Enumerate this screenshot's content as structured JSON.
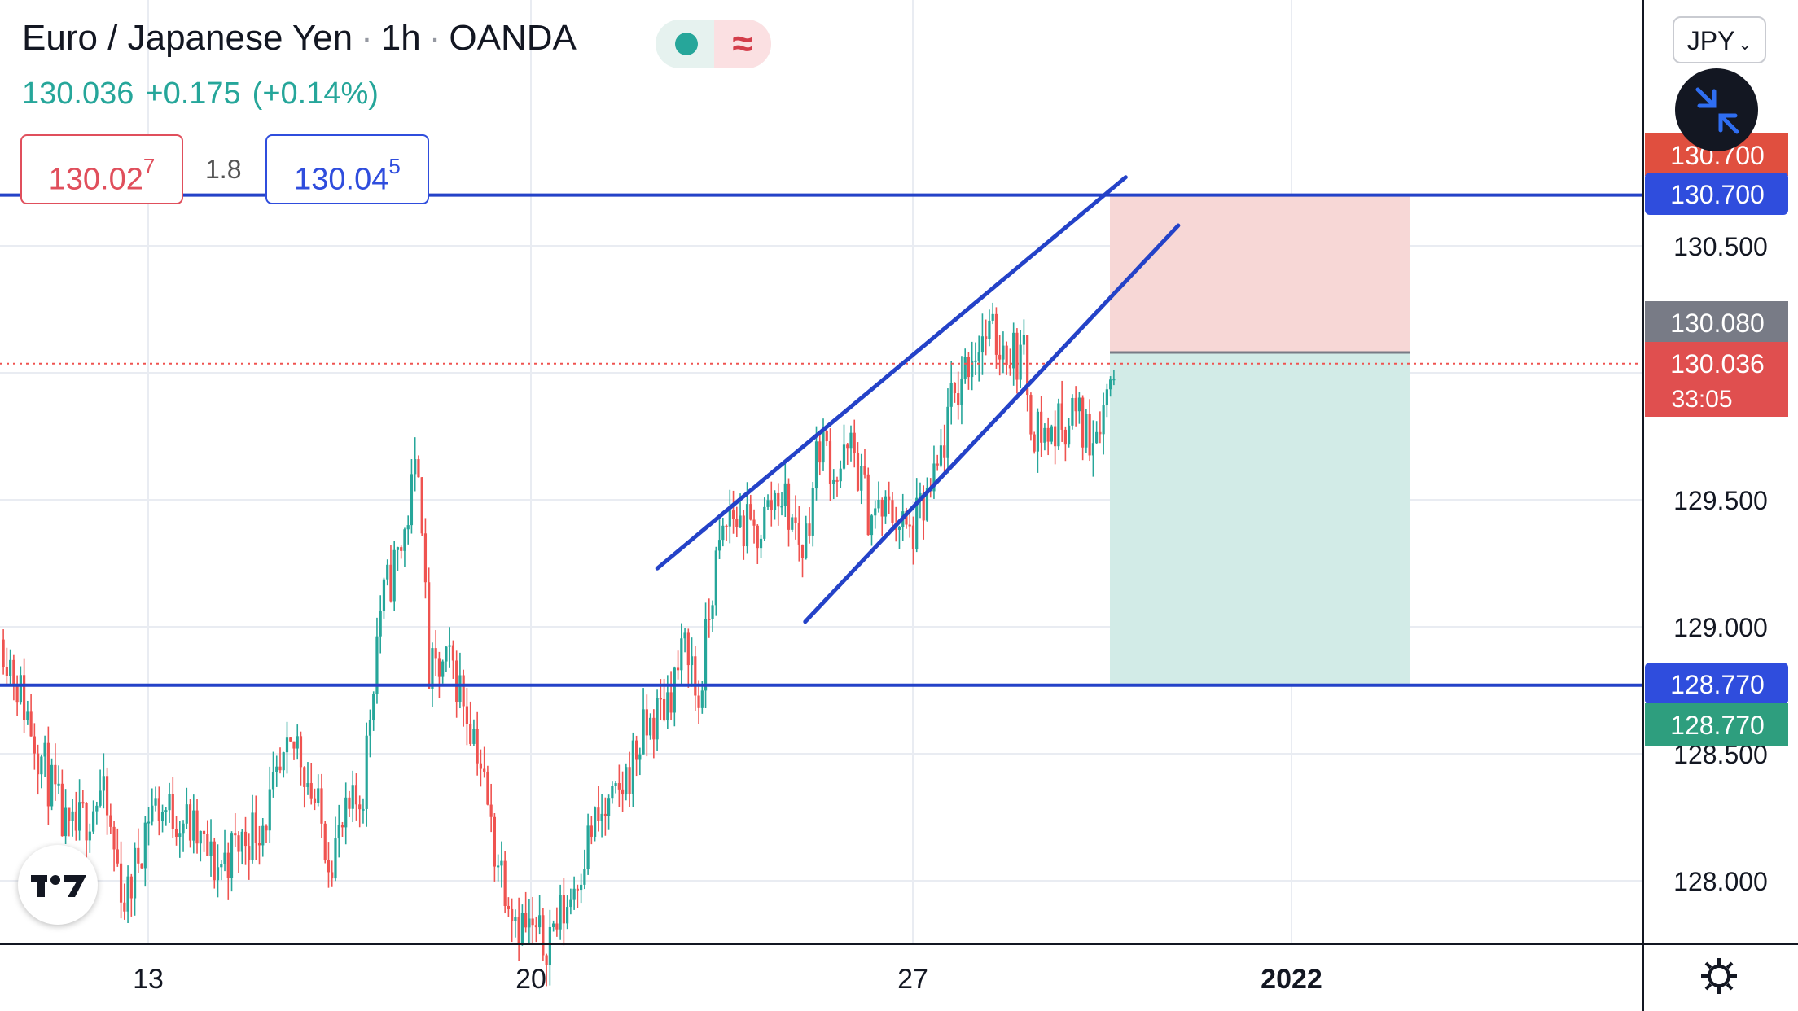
{
  "header": {
    "symbol": "Euro / Japanese Yen",
    "interval": "1h",
    "exchange": "OANDA",
    "separator": "·",
    "wave_glyph": "≈",
    "last": "130.036",
    "change": "+0.175",
    "change_pct": "(+0.14%)"
  },
  "bid": {
    "main": "130.02",
    "sup": "7"
  },
  "ask": {
    "main": "130.04",
    "sup": "5"
  },
  "spread": "1.8",
  "currency_button": {
    "label": "JPY",
    "chevron": "⌄"
  },
  "icons": {
    "status": "market-open-dot-icon",
    "wave": "wave-icon",
    "compress": "compress-arrows-icon",
    "logo": "tradingview-logo-icon",
    "settings": "gear-icon"
  },
  "colors": {
    "up": "#26a69a",
    "down": "#ef5350",
    "line": "#2442c8",
    "stop_zone": "#f7d7d6",
    "target_zone": "#d2ebe7"
  },
  "chart_data": {
    "type": "candlestick",
    "symbol": "EURJPY",
    "interval": "1h",
    "x_ticks": [
      "13",
      "20",
      "27",
      "2022"
    ],
    "y_ticks": [
      "128.000",
      "128.500",
      "129.000",
      "129.500",
      "130.000",
      "130.500"
    ],
    "ylim": [
      127.75,
      131.6
    ],
    "y_scale": "linear",
    "grid": true,
    "price_axis_labels": [
      {
        "value": "130.700",
        "kind": "stop-zone"
      },
      {
        "value": "130.700",
        "kind": "horizontal-line"
      },
      {
        "value": "130.080",
        "kind": "entry"
      },
      {
        "value": "130.036",
        "kind": "last-price",
        "countdown": "33:05"
      },
      {
        "value": "128.770",
        "kind": "horizontal-line"
      },
      {
        "value": "128.770",
        "kind": "target-zone"
      }
    ],
    "horizontal_lines": [
      130.7,
      128.77
    ],
    "last_price": 130.036,
    "countdown": "33:05",
    "short_position": {
      "entry": 130.08,
      "stop": 130.7,
      "target": 128.77
    },
    "channel_lines": [
      {
        "from": [
          0.4,
          129.23
        ],
        "to": [
          0.685,
          130.77
        ]
      },
      {
        "from": [
          0.49,
          129.02
        ],
        "to": [
          0.717,
          130.58
        ]
      }
    ],
    "candles_anchor_closes": [
      [
        0.0,
        128.95
      ],
      [
        0.02,
        128.55
      ],
      [
        0.04,
        128.15
      ],
      [
        0.06,
        128.35
      ],
      [
        0.075,
        127.9
      ],
      [
        0.09,
        128.3
      ],
      [
        0.11,
        128.25
      ],
      [
        0.13,
        128.05
      ],
      [
        0.16,
        128.25
      ],
      [
        0.18,
        128.55
      ],
      [
        0.2,
        128.1
      ],
      [
        0.22,
        128.35
      ],
      [
        0.23,
        129.05
      ],
      [
        0.245,
        129.35
      ],
      [
        0.255,
        129.7
      ],
      [
        0.26,
        128.8
      ],
      [
        0.275,
        128.85
      ],
      [
        0.29,
        128.55
      ],
      [
        0.3,
        128.15
      ],
      [
        0.315,
        127.85
      ],
      [
        0.33,
        127.75
      ],
      [
        0.345,
        127.9
      ],
      [
        0.36,
        128.2
      ],
      [
        0.375,
        128.3
      ],
      [
        0.39,
        128.55
      ],
      [
        0.405,
        128.7
      ],
      [
        0.42,
        128.95
      ],
      [
        0.425,
        128.65
      ],
      [
        0.435,
        129.2
      ],
      [
        0.445,
        129.45
      ],
      [
        0.46,
        129.35
      ],
      [
        0.475,
        129.55
      ],
      [
        0.49,
        129.3
      ],
      [
        0.5,
        129.75
      ],
      [
        0.51,
        129.6
      ],
      [
        0.52,
        129.7
      ],
      [
        0.53,
        129.45
      ],
      [
        0.545,
        129.45
      ],
      [
        0.555,
        129.35
      ],
      [
        0.57,
        129.55
      ],
      [
        0.58,
        129.85
      ],
      [
        0.59,
        130.05
      ],
      [
        0.6,
        130.15
      ],
      [
        0.615,
        130.1
      ],
      [
        0.625,
        130.05
      ],
      [
        0.63,
        129.8
      ],
      [
        0.64,
        129.75
      ],
      [
        0.655,
        129.85
      ],
      [
        0.665,
        129.75
      ],
      [
        0.675,
        129.9
      ],
      [
        0.68,
        130.05
      ]
    ]
  }
}
